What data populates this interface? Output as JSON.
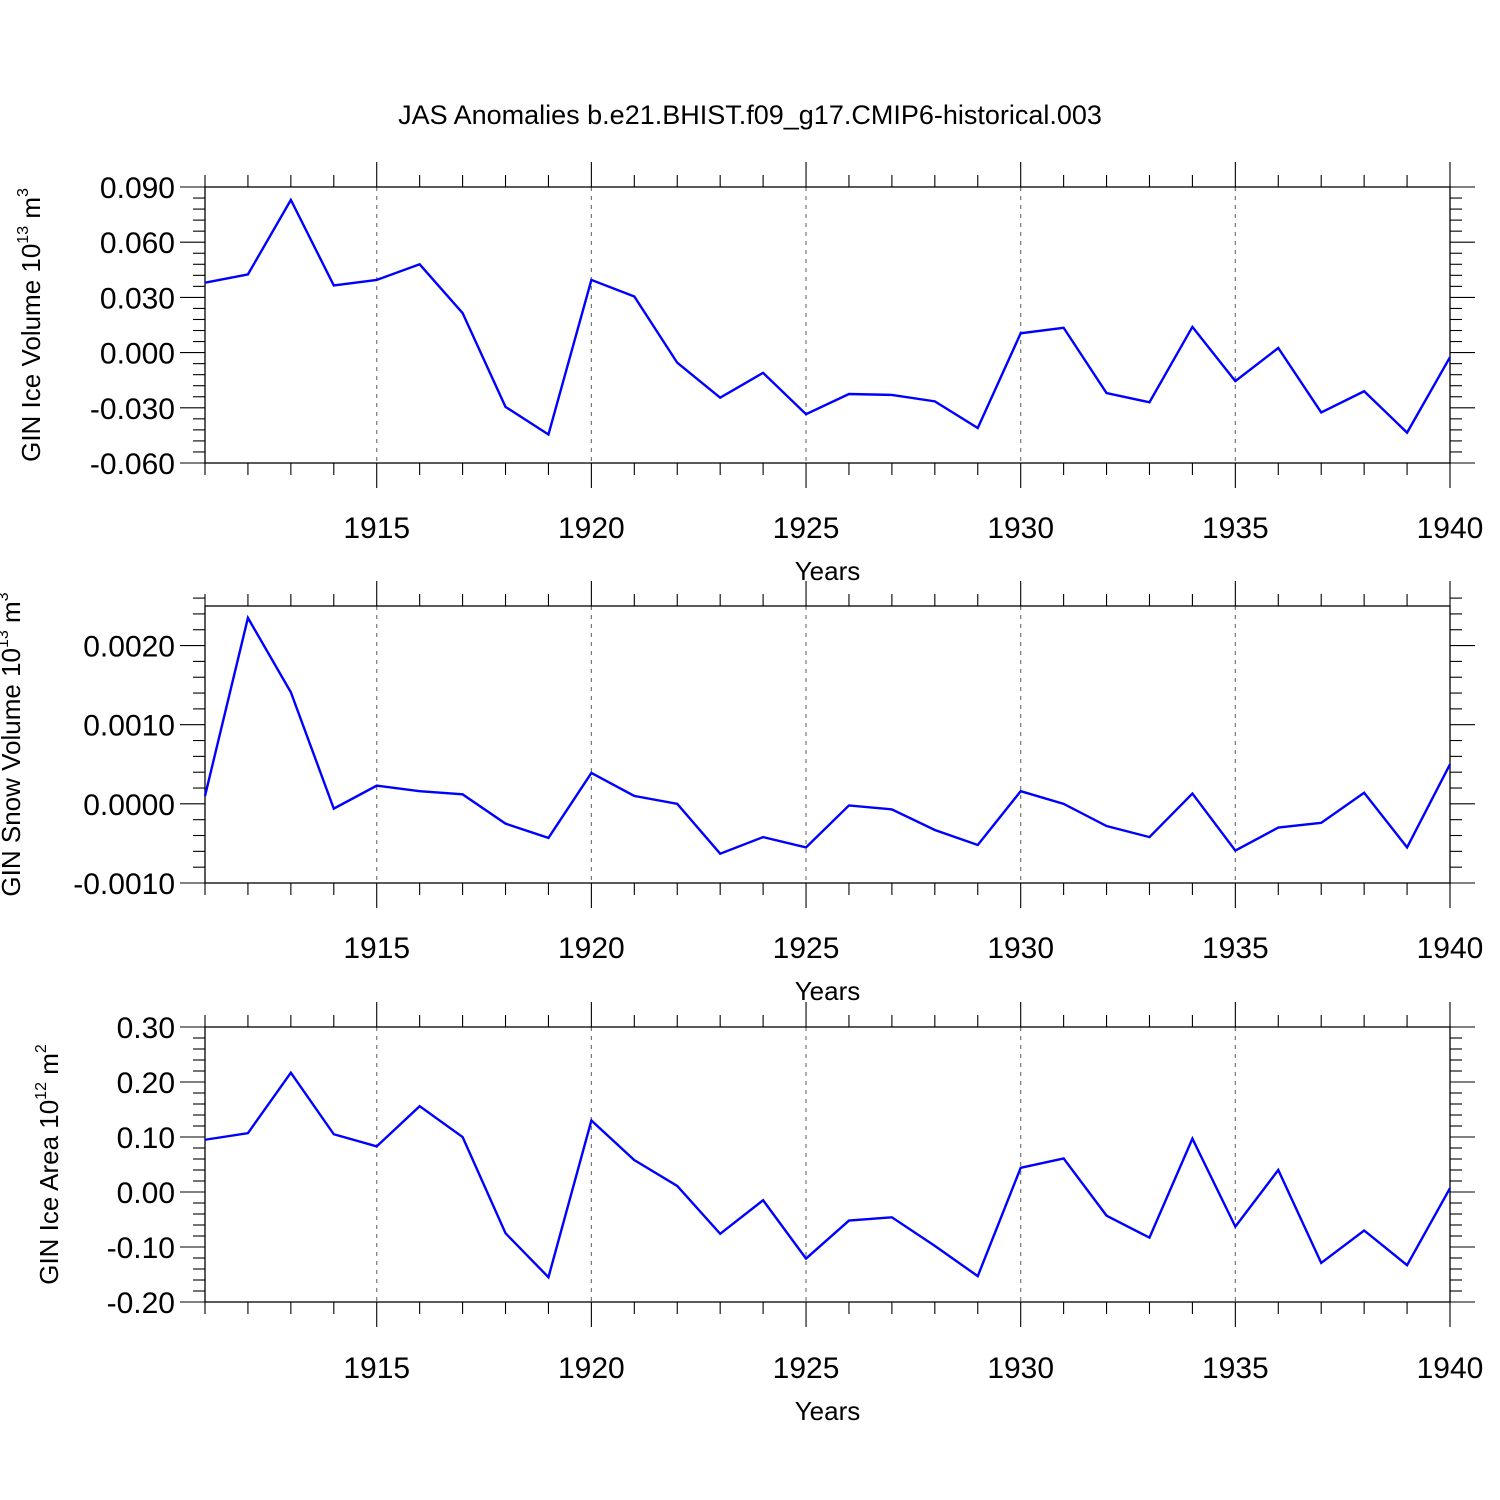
{
  "title": "JAS Anomalies b.e21.BHIST.f09_g17.CMIP6-historical.003",
  "colors": {
    "series": "#0000ff",
    "axis": "#000000",
    "grid": "#777777"
  },
  "chart_data": [
    {
      "type": "line",
      "xlabel": "Years",
      "ylabel": {
        "text": "GIN Ice Volume 10",
        "exponent": "13",
        "unit": " m",
        "unit_exponent": "3"
      },
      "xlim": [
        1911,
        1940
      ],
      "ylim": [
        -0.06,
        0.09
      ],
      "yticks": [
        -0.06,
        -0.03,
        0.0,
        0.03,
        0.06,
        0.09
      ],
      "ytick_labels": [
        "-0.060",
        "-0.030",
        "0.000",
        "0.030",
        "0.060",
        "0.090"
      ],
      "xticks": [
        1915,
        1920,
        1925,
        1930,
        1935,
        1940
      ],
      "xtick_labels": [
        "1915",
        "1920",
        "1925",
        "1930",
        "1935",
        "1940"
      ],
      "grid_x": true,
      "series": [
        {
          "x": [
            1911,
            1912,
            1913,
            1914,
            1915,
            1916,
            1917,
            1918,
            1919,
            1920,
            1921,
            1922,
            1923,
            1924,
            1925,
            1926,
            1927,
            1928,
            1929,
            1930,
            1931,
            1932,
            1933,
            1934,
            1935,
            1936,
            1937,
            1938,
            1939,
            1940
          ],
          "values": [
            0.038,
            0.0425,
            0.083,
            0.0365,
            0.0395,
            0.048,
            0.0215,
            -0.0295,
            -0.0445,
            0.0395,
            0.0305,
            -0.0055,
            -0.0245,
            -0.011,
            -0.0335,
            -0.0225,
            -0.023,
            -0.0265,
            -0.041,
            0.0105,
            0.0135,
            -0.022,
            -0.027,
            0.014,
            -0.0155,
            0.0025,
            -0.0325,
            -0.021,
            -0.0435,
            -0.0025
          ]
        }
      ]
    },
    {
      "type": "line",
      "xlabel": "Years",
      "ylabel": {
        "text": "GIN Snow Volume 10",
        "exponent": "13",
        "unit": " m",
        "unit_exponent": "3"
      },
      "xlim": [
        1911,
        1940
      ],
      "ylim": [
        -0.001,
        0.0025
      ],
      "yticks": [
        -0.001,
        0.0,
        0.001,
        0.002
      ],
      "ytick_labels": [
        "-0.0010",
        "0.0000",
        "0.0010",
        "0.0020"
      ],
      "xticks": [
        1915,
        1920,
        1925,
        1930,
        1935,
        1940
      ],
      "xtick_labels": [
        "1915",
        "1920",
        "1925",
        "1930",
        "1935",
        "1940"
      ],
      "grid_x": true,
      "series": [
        {
          "x": [
            1911,
            1912,
            1913,
            1914,
            1915,
            1916,
            1917,
            1918,
            1919,
            1920,
            1921,
            1922,
            1923,
            1924,
            1925,
            1926,
            1927,
            1928,
            1929,
            1930,
            1931,
            1932,
            1933,
            1934,
            1935,
            1936,
            1937,
            1938,
            1939,
            1940
          ],
          "values": [
            0.0001,
            0.00235,
            0.00141,
            -6e-05,
            0.00023,
            0.00016,
            0.00012,
            -0.00025,
            -0.00043,
            0.00039,
            0.0001,
            0.0,
            -0.00063,
            -0.00042,
            -0.00055,
            -2e-05,
            -7e-05,
            -0.00033,
            -0.00052,
            0.00016,
            0.0,
            -0.00028,
            -0.00042,
            0.00013,
            -0.00059,
            -0.0003,
            -0.00024,
            0.00014,
            -0.00055,
            0.0005
          ]
        }
      ]
    },
    {
      "type": "line",
      "xlabel": "Years",
      "ylabel": {
        "text": "GIN Ice Area 10",
        "exponent": "12",
        "unit": " m",
        "unit_exponent": "2"
      },
      "xlim": [
        1911,
        1940
      ],
      "ylim": [
        -0.2,
        0.3
      ],
      "yticks": [
        -0.2,
        -0.1,
        0.0,
        0.1,
        0.2,
        0.3
      ],
      "ytick_labels": [
        "-0.20",
        "-0.10",
        "0.00",
        "0.10",
        "0.20",
        "0.30"
      ],
      "xticks": [
        1915,
        1920,
        1925,
        1930,
        1935,
        1940
      ],
      "xtick_labels": [
        "1915",
        "1920",
        "1925",
        "1930",
        "1935",
        "1940"
      ],
      "grid_x": true,
      "series": [
        {
          "x": [
            1911,
            1912,
            1913,
            1914,
            1915,
            1916,
            1917,
            1918,
            1919,
            1920,
            1921,
            1922,
            1923,
            1924,
            1925,
            1926,
            1927,
            1928,
            1929,
            1930,
            1931,
            1932,
            1933,
            1934,
            1935,
            1936,
            1937,
            1938,
            1939,
            1940
          ],
          "values": [
            0.095,
            0.107,
            0.217,
            0.105,
            0.083,
            0.156,
            0.1,
            -0.075,
            -0.155,
            0.13,
            0.058,
            0.011,
            -0.076,
            -0.015,
            -0.121,
            -0.052,
            -0.046,
            -0.098,
            -0.153,
            0.044,
            0.061,
            -0.043,
            -0.083,
            0.097,
            -0.063,
            0.04,
            -0.129,
            -0.07,
            -0.133,
            0.007
          ]
        }
      ]
    }
  ]
}
